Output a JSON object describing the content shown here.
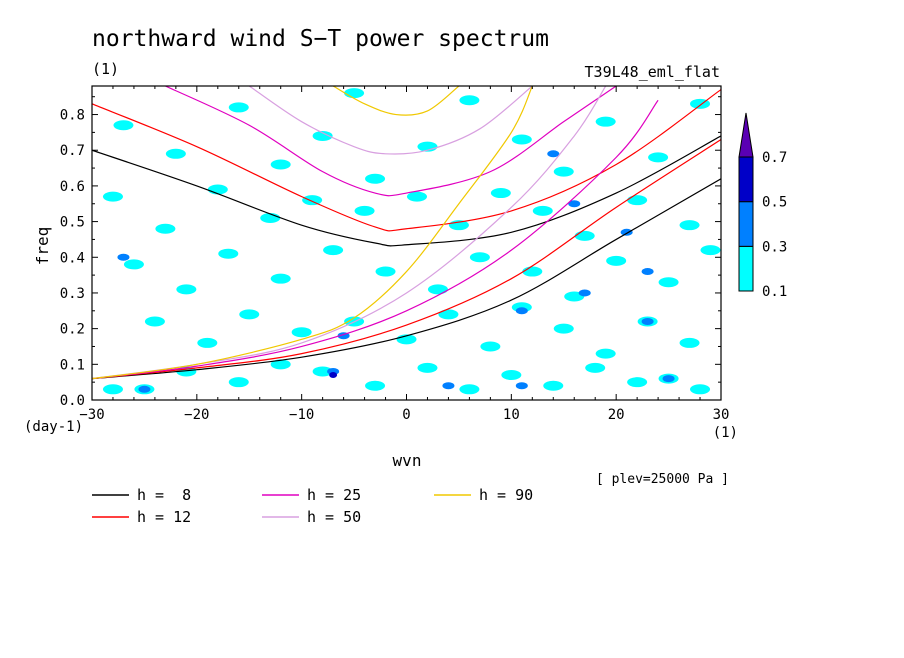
{
  "chart_data": {
    "type": "heatmap",
    "title": "northward wind S−T power spectrum",
    "title_units": "(1)",
    "run_label": "T39L48_eml_flat",
    "xlabel": "wvn",
    "x_units": "(1)",
    "ylabel": "freq",
    "y_units": "(day-1)",
    "footnote": "[ plev=25000 Pa ]",
    "xlim": [
      -30,
      30
    ],
    "ylim": [
      0,
      0.88
    ],
    "xticks": [
      "−30",
      "−20",
      "−10",
      "0",
      "10",
      "20",
      "30"
    ],
    "xtick_values": [
      -30,
      -20,
      -10,
      0,
      10,
      20,
      30
    ],
    "yticks": [
      "0.0",
      "0.1",
      "0.2",
      "0.3",
      "0.4",
      "0.5",
      "0.6",
      "0.7",
      "0.8"
    ],
    "ytick_values": [
      0,
      0.1,
      0.2,
      0.3,
      0.4,
      0.5,
      0.6,
      0.7,
      0.8
    ],
    "color_levels": [
      0.1,
      0.3,
      0.5,
      0.7
    ],
    "color_level_labels": [
      "0.1",
      "0.3",
      "0.5",
      "0.7"
    ],
    "fill_colors": [
      "#00ffff",
      "#0080ff",
      "#0000c8",
      "#5a00b4"
    ],
    "patches": [
      {
        "x": -27,
        "y": 0.77,
        "l": 1
      },
      {
        "x": -22,
        "y": 0.69,
        "l": 1
      },
      {
        "x": -16,
        "y": 0.82,
        "l": 1
      },
      {
        "x": -12,
        "y": 0.66,
        "l": 1
      },
      {
        "x": -8,
        "y": 0.74,
        "l": 1
      },
      {
        "x": -3,
        "y": 0.62,
        "l": 1
      },
      {
        "x": 2,
        "y": 0.71,
        "l": 1
      },
      {
        "x": 6,
        "y": 0.84,
        "l": 1
      },
      {
        "x": 11,
        "y": 0.73,
        "l": 1
      },
      {
        "x": 15,
        "y": 0.64,
        "l": 1
      },
      {
        "x": 19,
        "y": 0.78,
        "l": 1
      },
      {
        "x": 24,
        "y": 0.68,
        "l": 1
      },
      {
        "x": 28,
        "y": 0.83,
        "l": 1
      },
      {
        "x": 14,
        "y": 0.69,
        "l": 2
      },
      {
        "x": -5,
        "y": 0.86,
        "l": 1
      },
      {
        "x": -28,
        "y": 0.57,
        "l": 1
      },
      {
        "x": -23,
        "y": 0.48,
        "l": 1
      },
      {
        "x": -18,
        "y": 0.59,
        "l": 1
      },
      {
        "x": -13,
        "y": 0.51,
        "l": 1
      },
      {
        "x": -9,
        "y": 0.56,
        "l": 1
      },
      {
        "x": -4,
        "y": 0.53,
        "l": 1
      },
      {
        "x": 1,
        "y": 0.57,
        "l": 1
      },
      {
        "x": 5,
        "y": 0.49,
        "l": 1
      },
      {
        "x": 9,
        "y": 0.58,
        "l": 1
      },
      {
        "x": 13,
        "y": 0.53,
        "l": 1
      },
      {
        "x": 17,
        "y": 0.46,
        "l": 1
      },
      {
        "x": 22,
        "y": 0.56,
        "l": 1
      },
      {
        "x": 27,
        "y": 0.49,
        "l": 1
      },
      {
        "x": 21,
        "y": 0.47,
        "l": 2
      },
      {
        "x": 16,
        "y": 0.55,
        "l": 2
      },
      {
        "x": -26,
        "y": 0.38,
        "l": 1
      },
      {
        "x": -21,
        "y": 0.31,
        "l": 1
      },
      {
        "x": -17,
        "y": 0.41,
        "l": 1
      },
      {
        "x": -12,
        "y": 0.34,
        "l": 1
      },
      {
        "x": -7,
        "y": 0.42,
        "l": 1
      },
      {
        "x": -2,
        "y": 0.36,
        "l": 1
      },
      {
        "x": 3,
        "y": 0.31,
        "l": 1
      },
      {
        "x": 7,
        "y": 0.4,
        "l": 1
      },
      {
        "x": 12,
        "y": 0.36,
        "l": 1
      },
      {
        "x": 16,
        "y": 0.29,
        "l": 1
      },
      {
        "x": 20,
        "y": 0.39,
        "l": 1
      },
      {
        "x": 25,
        "y": 0.33,
        "l": 1
      },
      {
        "x": 29,
        "y": 0.42,
        "l": 1
      },
      {
        "x": -27,
        "y": 0.4,
        "l": 2
      },
      {
        "x": 17,
        "y": 0.3,
        "l": 2
      },
      {
        "x": 23,
        "y": 0.36,
        "l": 2
      },
      {
        "x": -24,
        "y": 0.22,
        "l": 1
      },
      {
        "x": -19,
        "y": 0.16,
        "l": 1
      },
      {
        "x": -15,
        "y": 0.24,
        "l": 1
      },
      {
        "x": -10,
        "y": 0.19,
        "l": 1
      },
      {
        "x": -5,
        "y": 0.22,
        "l": 1
      },
      {
        "x": 0,
        "y": 0.17,
        "l": 1
      },
      {
        "x": 4,
        "y": 0.24,
        "l": 1
      },
      {
        "x": 8,
        "y": 0.15,
        "l": 1
      },
      {
        "x": 11,
        "y": 0.26,
        "l": 1
      },
      {
        "x": 15,
        "y": 0.2,
        "l": 1
      },
      {
        "x": 19,
        "y": 0.13,
        "l": 1
      },
      {
        "x": 23,
        "y": 0.22,
        "l": 1
      },
      {
        "x": 27,
        "y": 0.16,
        "l": 1
      },
      {
        "x": 11,
        "y": 0.25,
        "l": 2
      },
      {
        "x": 23,
        "y": 0.22,
        "l": 2
      },
      {
        "x": -6,
        "y": 0.18,
        "l": 2
      },
      {
        "x": -28,
        "y": 0.03,
        "l": 1
      },
      {
        "x": -25,
        "y": 0.03,
        "l": 1
      },
      {
        "x": -21,
        "y": 0.08,
        "l": 1
      },
      {
        "x": -16,
        "y": 0.05,
        "l": 1
      },
      {
        "x": -12,
        "y": 0.1,
        "l": 1
      },
      {
        "x": -8,
        "y": 0.08,
        "l": 1
      },
      {
        "x": -3,
        "y": 0.04,
        "l": 1
      },
      {
        "x": 2,
        "y": 0.09,
        "l": 1
      },
      {
        "x": 6,
        "y": 0.03,
        "l": 1
      },
      {
        "x": 10,
        "y": 0.07,
        "l": 1
      },
      {
        "x": 14,
        "y": 0.04,
        "l": 1
      },
      {
        "x": 18,
        "y": 0.09,
        "l": 1
      },
      {
        "x": 22,
        "y": 0.05,
        "l": 1
      },
      {
        "x": 25,
        "y": 0.06,
        "l": 1
      },
      {
        "x": 28,
        "y": 0.03,
        "l": 1
      },
      {
        "x": -7,
        "y": 0.08,
        "l": 2
      },
      {
        "x": -7,
        "y": 0.07,
        "l": 3
      },
      {
        "x": 4,
        "y": 0.04,
        "l": 2
      },
      {
        "x": 25,
        "y": 0.06,
        "l": 2
      },
      {
        "x": -25,
        "y": 0.03,
        "l": 2
      },
      {
        "x": 11,
        "y": 0.04,
        "l": 2
      }
    ],
    "series": [
      {
        "name": "h = 8",
        "color": "#000000",
        "points": [
          [
            -30,
            0.06
          ],
          [
            -20,
            0.085
          ],
          [
            -10,
            0.12
          ],
          [
            0,
            0.18
          ],
          [
            10,
            0.28
          ],
          [
            20,
            0.45
          ],
          [
            30,
            0.62
          ]
        ]
      },
      {
        "name": "h = 8",
        "color": "#000000",
        "points": [
          [
            -30,
            0.7
          ],
          [
            -20,
            0.6
          ],
          [
            -10,
            0.49
          ],
          [
            -3,
            0.44
          ],
          [
            0,
            0.435
          ],
          [
            10,
            0.47
          ],
          [
            20,
            0.58
          ],
          [
            30,
            0.74
          ]
        ]
      },
      {
        "name": "h = 12",
        "color": "#ff0000",
        "points": [
          [
            -30,
            0.06
          ],
          [
            -20,
            0.09
          ],
          [
            -10,
            0.13
          ],
          [
            0,
            0.21
          ],
          [
            10,
            0.34
          ],
          [
            20,
            0.54
          ],
          [
            30,
            0.73
          ]
        ]
      },
      {
        "name": "h = 12",
        "color": "#ff0000",
        "points": [
          [
            -30,
            0.83
          ],
          [
            -20,
            0.71
          ],
          [
            -10,
            0.57
          ],
          [
            -3,
            0.485
          ],
          [
            0,
            0.48
          ],
          [
            10,
            0.53
          ],
          [
            20,
            0.66
          ],
          [
            30,
            0.87
          ]
        ]
      },
      {
        "name": "h = 25",
        "color": "#e000c0",
        "points": [
          [
            -30,
            0.06
          ],
          [
            -20,
            0.095
          ],
          [
            -10,
            0.15
          ],
          [
            0,
            0.25
          ],
          [
            10,
            0.42
          ],
          [
            20,
            0.68
          ],
          [
            24,
            0.84
          ]
        ]
      },
      {
        "name": "h = 25",
        "color": "#e000c0",
        "points": [
          [
            -23,
            0.88
          ],
          [
            -15,
            0.77
          ],
          [
            -8,
            0.64
          ],
          [
            -3,
            0.58
          ],
          [
            0,
            0.58
          ],
          [
            8,
            0.64
          ],
          [
            15,
            0.78
          ],
          [
            20,
            0.88
          ]
        ]
      },
      {
        "name": "h = 50",
        "color": "#d8a0e0",
        "points": [
          [
            -30,
            0.06
          ],
          [
            -20,
            0.1
          ],
          [
            -10,
            0.16
          ],
          [
            0,
            0.3
          ],
          [
            10,
            0.54
          ],
          [
            16,
            0.74
          ],
          [
            19,
            0.88
          ]
        ]
      },
      {
        "name": "h = 50",
        "color": "#d8a0e0",
        "points": [
          [
            -15,
            0.88
          ],
          [
            -10,
            0.78
          ],
          [
            -5,
            0.71
          ],
          [
            -2,
            0.69
          ],
          [
            2,
            0.7
          ],
          [
            7,
            0.76
          ],
          [
            12,
            0.88
          ]
        ]
      },
      {
        "name": "h = 90",
        "color": "#f0c800",
        "points": [
          [
            -30,
            0.06
          ],
          [
            -20,
            0.1
          ],
          [
            -10,
            0.17
          ],
          [
            -5,
            0.23
          ],
          [
            0,
            0.36
          ],
          [
            5,
            0.55
          ],
          [
            10,
            0.75
          ],
          [
            12,
            0.88
          ]
        ]
      },
      {
        "name": "h = 90",
        "color": "#f0c800",
        "points": [
          [
            -7,
            0.88
          ],
          [
            -4,
            0.83
          ],
          [
            -1,
            0.8
          ],
          [
            2,
            0.81
          ],
          [
            5,
            0.88
          ]
        ]
      }
    ],
    "legend": [
      {
        "label": "h =  8",
        "color": "#000000"
      },
      {
        "label": "h = 12",
        "color": "#ff0000"
      },
      {
        "label": "h = 25",
        "color": "#e000c0"
      },
      {
        "label": "h = 50",
        "color": "#d8a0e0"
      },
      {
        "label": "h = 90",
        "color": "#f0c800"
      }
    ]
  }
}
